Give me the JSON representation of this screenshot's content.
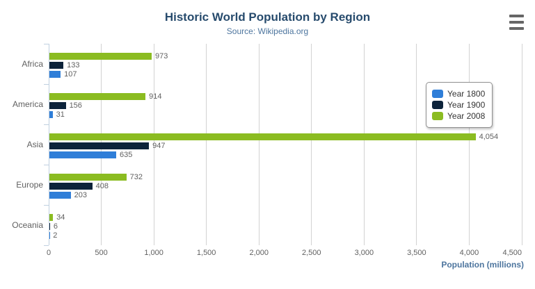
{
  "theme": {
    "title_color": "#274b6d",
    "subtitle_color": "#4d759e",
    "label_color": "#606060",
    "grid_color": "#d2d2d2",
    "axis_color": "#c0d0e0",
    "legend_border_color": "#909090"
  },
  "context_menu": {
    "icon": "hamburger-menu-icon"
  },
  "chart_data": {
    "type": "bar",
    "orientation": "horizontal",
    "title": "Historic World Population by Region",
    "subtitle": "Source: Wikipedia.org",
    "categories": [
      "Africa",
      "America",
      "Asia",
      "Europe",
      "Oceania"
    ],
    "series": [
      {
        "name": "Year 1800",
        "color": "#2f7ed8",
        "values": [
          107,
          31,
          635,
          203,
          2
        ]
      },
      {
        "name": "Year 1900",
        "color": "#0d233a",
        "values": [
          133,
          156,
          947,
          408,
          6
        ]
      },
      {
        "name": "Year 2008",
        "color": "#8bbc21",
        "values": [
          973,
          914,
          4054,
          732,
          34
        ]
      }
    ],
    "data_labels": true,
    "xlabel": "Population (millions)",
    "ylabel": "",
    "xlim": [
      0,
      4500
    ],
    "x_ticks": [
      0,
      500,
      1000,
      1500,
      2000,
      2500,
      3000,
      3500,
      4000,
      4500
    ],
    "grid": true,
    "legend_position": "right-inside"
  }
}
